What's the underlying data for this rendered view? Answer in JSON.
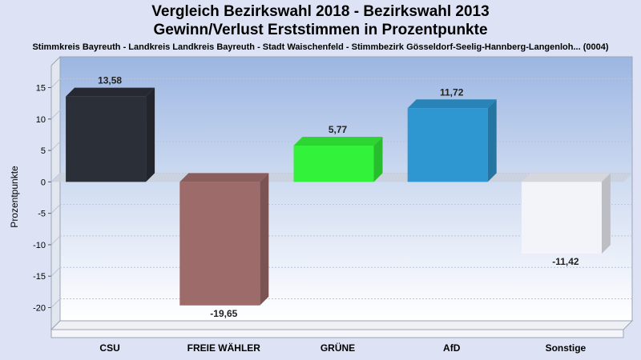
{
  "chart_data": {
    "type": "bar",
    "title": "Vergleich Bezirkswahl 2018 - Bezirkswahl 2013",
    "subtitle": "Gewinn/Verlust Erststimmen in Prozentpunkte",
    "subtitle2": "Stimmkreis Bayreuth - Landkreis Landkreis Bayreuth - Stadt Waischenfeld - Stimmbezirk Gösseldorf-Seelig-Hannberg-Langenloh... (0004)",
    "ylabel": "Prozentpunkte",
    "xlabel": "",
    "ylim": [
      -23.5,
      18.5
    ],
    "yticks": [
      15,
      10,
      5,
      0,
      -5,
      -10,
      -15,
      -20
    ],
    "grid": true,
    "categories": [
      "CSU",
      "FREIE WÄHLER",
      "GRÜNE",
      "AfD",
      "Sonstige"
    ],
    "values": [
      13.58,
      -19.65,
      5.77,
      11.72,
      -11.42
    ],
    "value_labels": [
      "13,58",
      "-19,65",
      "5,77",
      "11,72",
      "-11,42"
    ],
    "colors": [
      "#2b2f38",
      "#9e6b6b",
      "#33f23a",
      "#2e96d0",
      "#f2f4fa"
    ]
  }
}
